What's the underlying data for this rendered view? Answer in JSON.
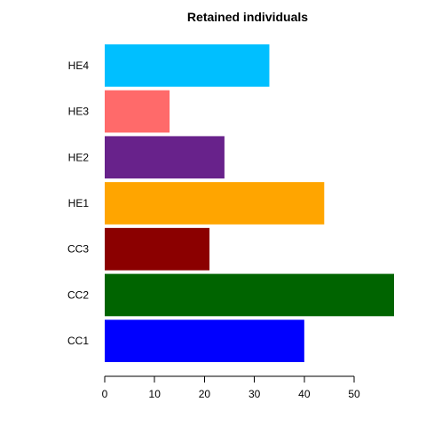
{
  "chart_data": {
    "type": "bar",
    "orientation": "horizontal",
    "title": "Retained individuals",
    "xlabel": "",
    "ylabel": "",
    "categories": [
      "CC1",
      "CC2",
      "CC3",
      "HE1",
      "HE2",
      "HE3",
      "HE4"
    ],
    "values": [
      40,
      58,
      21,
      44,
      24,
      13,
      33
    ],
    "colors": [
      "#0000ff",
      "#006400",
      "#8b0000",
      "#ffa500",
      "#68228b",
      "#ff6a6a",
      "#00bfff"
    ],
    "xlim": [
      0,
      58
    ],
    "xticks": [
      0,
      10,
      20,
      30,
      40,
      50
    ],
    "grid": false,
    "legend": "none"
  }
}
